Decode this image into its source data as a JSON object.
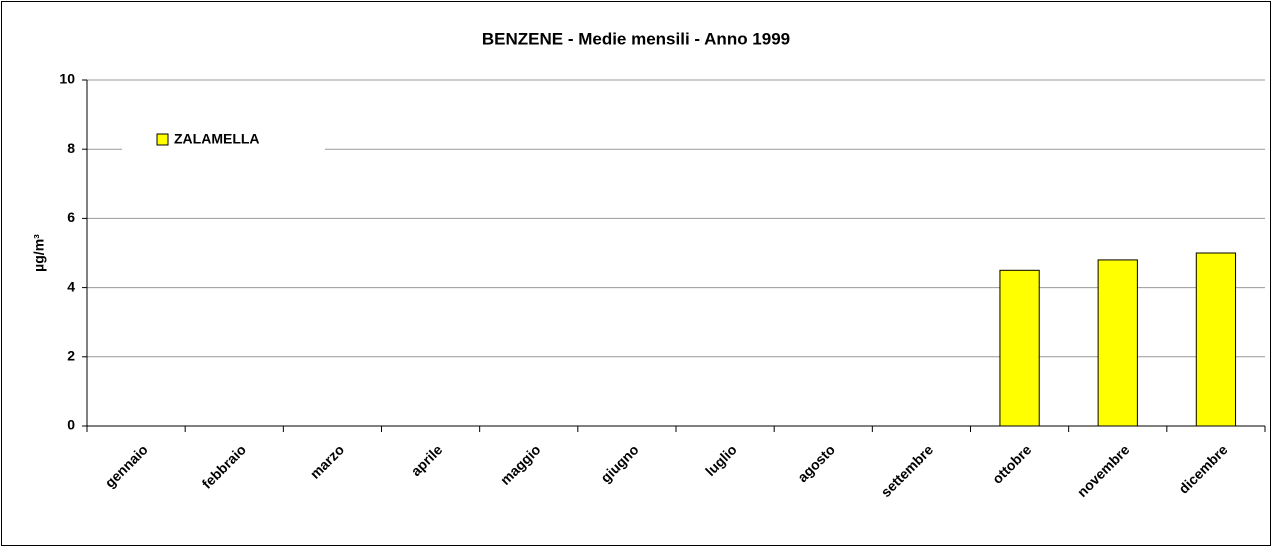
{
  "chart_data": {
    "type": "bar",
    "title": "BENZENE - Medie mensili - Anno 1999",
    "y_label": "µg/m³",
    "categories": [
      "gennaio",
      "febbraio",
      "marzo",
      "aprile",
      "maggio",
      "giugno",
      "luglio",
      "agosto",
      "settembre",
      "ottobre",
      "novembre",
      "dicembre"
    ],
    "series": [
      {
        "name": "ZALAMELLA",
        "color": "#ffff00",
        "values": [
          null,
          null,
          null,
          null,
          null,
          null,
          null,
          null,
          null,
          4.5,
          4.8,
          5.0
        ]
      }
    ],
    "ylim": [
      0,
      10
    ],
    "yticks": [
      0,
      2,
      4,
      6,
      8,
      10
    ],
    "grid": true,
    "legend": "top-left"
  }
}
